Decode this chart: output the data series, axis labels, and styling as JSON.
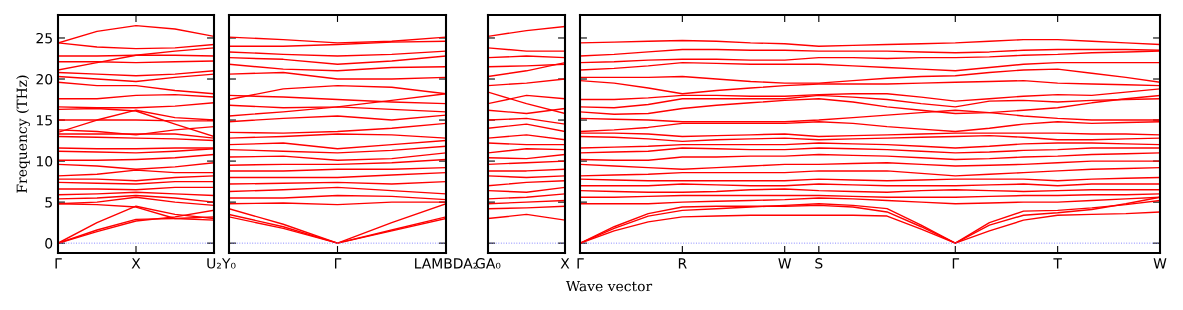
{
  "chart_data": [
    {
      "type": "line",
      "ylabel": "Frequency (THz)",
      "categories": [
        "Γ",
        null,
        "X",
        null,
        "U₂"
      ],
      "ylim": [
        -1.2,
        27.8
      ],
      "yticks": [
        0,
        5,
        10,
        15,
        20,
        25
      ],
      "ref_lines": [
        {
          "axis": "y",
          "value": 0,
          "color": "#8080ff",
          "line_style": "dotted"
        }
      ],
      "series": [
        {
          "color": "#ff0000",
          "values": [
            0,
            2.5,
            4.5,
            3.5,
            3
          ]
        },
        {
          "color": "#ff0000",
          "values": [
            0,
            1.6,
            2.9,
            3.0,
            3.2
          ]
        },
        {
          "color": "#ff0000",
          "values": [
            0,
            1.4,
            2.7,
            3.2,
            4.0
          ]
        },
        {
          "color": "#ff0000",
          "values": [
            4.8,
            4.7,
            4.4,
            3.0,
            2.8
          ]
        },
        {
          "color": "#ff0000",
          "values": [
            4.8,
            5.0,
            5.6,
            5.0,
            4.6
          ]
        },
        {
          "color": "#ff0000",
          "values": [
            5.4,
            5.5,
            5.8,
            5.5,
            5.0
          ]
        },
        {
          "color": "#ff0000",
          "values": [
            5.9,
            6.0,
            6.2,
            6.0,
            5.8
          ]
        },
        {
          "color": "#ff0000",
          "values": [
            6.6,
            6.6,
            6.5,
            6.8,
            6.8
          ]
        },
        {
          "color": "#ff0000",
          "values": [
            7.4,
            7.3,
            7.2,
            7.5,
            7.5
          ]
        },
        {
          "color": "#ff0000",
          "values": [
            7.8,
            7.8,
            7.6,
            8.0,
            8.2
          ]
        },
        {
          "color": "#ff0000",
          "values": [
            8.2,
            8.4,
            8.9,
            8.6,
            8.6
          ]
        },
        {
          "color": "#ff0000",
          "values": [
            9.6,
            9.4,
            9.0,
            9.3,
            9.8
          ]
        },
        {
          "color": "#ff0000",
          "values": [
            10.1,
            10.1,
            10.2,
            10.4,
            10.8
          ]
        },
        {
          "color": "#ff0000",
          "values": [
            11.2,
            11.1,
            11.0,
            11.2,
            11.5
          ]
        },
        {
          "color": "#ff0000",
          "values": [
            11.6,
            11.5,
            11.5,
            11.6,
            11.6
          ]
        },
        {
          "color": "#ff0000",
          "values": [
            13.0,
            12.9,
            12.8,
            12.7,
            12.5
          ]
        },
        {
          "color": "#ff0000",
          "values": [
            13.3,
            13.3,
            13.3,
            13.3,
            12.8
          ]
        },
        {
          "color": "#ff0000",
          "values": [
            13.8,
            13.6,
            13.2,
            13.8,
            14.2
          ]
        },
        {
          "color": "#ff0000",
          "values": [
            13.5,
            15.0,
            16.2,
            15.3,
            15.0
          ]
        },
        {
          "color": "#ff0000",
          "values": [
            15.0,
            15.0,
            15.0,
            14.9,
            14.9
          ]
        },
        {
          "color": "#ff0000",
          "values": [
            16.3,
            16.4,
            16.1,
            14.5,
            13.0
          ]
        },
        {
          "color": "#ff0000",
          "values": [
            16.6,
            16.5,
            16.5,
            16.7,
            17.1
          ]
        },
        {
          "color": "#ff0000",
          "values": [
            17.6,
            17.6,
            18.0,
            18.1,
            17.8
          ]
        },
        {
          "color": "#ff0000",
          "values": [
            19.6,
            19.2,
            19.2,
            18.6,
            18.2
          ]
        },
        {
          "color": "#ff0000",
          "values": [
            20.3,
            20.0,
            19.7,
            20.2,
            20.6
          ]
        },
        {
          "color": "#ff0000",
          "values": [
            20.8,
            20.6,
            20.4,
            20.6,
            21.0
          ]
        },
        {
          "color": "#ff0000",
          "values": [
            21.1,
            22.0,
            22.9,
            23.4,
            23.8
          ]
        },
        {
          "color": "#ff0000",
          "values": [
            22.1,
            22.1,
            22.0,
            22.1,
            22.2
          ]
        },
        {
          "color": "#ff0000",
          "values": [
            22.8,
            22.8,
            22.9,
            22.9,
            22.8
          ]
        },
        {
          "color": "#ff0000",
          "values": [
            24.4,
            23.9,
            23.7,
            23.8,
            24.2
          ]
        },
        {
          "color": "#ff0000",
          "values": [
            24.4,
            25.8,
            26.5,
            26.1,
            25.2
          ]
        }
      ]
    },
    {
      "type": "line",
      "tick_labels": "x",
      "categories": [
        "Y₀",
        null,
        "Γ",
        null,
        "LAMBDA₂"
      ],
      "ylim": [
        -1.2,
        27.8
      ],
      "yticks": [
        0,
        5,
        10,
        15,
        20,
        25
      ],
      "ref_lines": [
        {
          "axis": "y",
          "value": 0,
          "color": "#8080ff",
          "line_style": "dotted"
        }
      ],
      "series": [
        {
          "color": "#ff0000",
          "values": [
            3.2,
            1.8,
            0,
            2.5,
            4.8
          ]
        },
        {
          "color": "#ff0000",
          "values": [
            3.5,
            2.0,
            0,
            1.6,
            3.2
          ]
        },
        {
          "color": "#ff0000",
          "values": [
            4.2,
            2.3,
            0,
            1.5,
            3.0
          ]
        },
        {
          "color": "#ff0000",
          "values": [
            4.8,
            4.9,
            4.7,
            5.0,
            5.0
          ]
        },
        {
          "color": "#ff0000",
          "values": [
            5.5,
            5.5,
            5.8,
            5.7,
            5.3
          ]
        },
        {
          "color": "#ff0000",
          "values": [
            6.3,
            6.5,
            6.8,
            6.4,
            6.0
          ]
        },
        {
          "color": "#ff0000",
          "values": [
            7.2,
            7.3,
            7.4,
            7.2,
            7.5
          ]
        },
        {
          "color": "#ff0000",
          "values": [
            8.0,
            8.0,
            8.0,
            8.3,
            8.6
          ]
        },
        {
          "color": "#ff0000",
          "values": [
            8.8,
            8.8,
            9.0,
            9.0,
            9.2
          ]
        },
        {
          "color": "#ff0000",
          "values": [
            9.5,
            9.6,
            9.6,
            9.8,
            10.2
          ]
        },
        {
          "color": "#ff0000",
          "values": [
            10.5,
            10.6,
            10.1,
            10.3,
            11.0
          ]
        },
        {
          "color": "#ff0000",
          "values": [
            11.4,
            11.2,
            11.0,
            11.3,
            11.8
          ]
        },
        {
          "color": "#ff0000",
          "values": [
            12.0,
            12.2,
            11.5,
            12.0,
            12.5
          ]
        },
        {
          "color": "#ff0000",
          "values": [
            12.8,
            13.0,
            13.3,
            13.2,
            12.8
          ]
        },
        {
          "color": "#ff0000",
          "values": [
            13.5,
            13.4,
            13.6,
            14.0,
            14.6
          ]
        },
        {
          "color": "#ff0000",
          "values": [
            14.8,
            15.2,
            15.5,
            15.0,
            15.6
          ]
        },
        {
          "color": "#ff0000",
          "values": [
            15.5,
            16.0,
            16.6,
            16.3,
            16.0
          ]
        },
        {
          "color": "#ff0000",
          "values": [
            16.8,
            16.5,
            16.6,
            17.4,
            18.2
          ]
        },
        {
          "color": "#ff0000",
          "values": [
            17.5,
            18.8,
            19.2,
            19.0,
            18.2
          ]
        },
        {
          "color": "#ff0000",
          "values": [
            18.0,
            17.8,
            17.5,
            17.2,
            17.0
          ]
        },
        {
          "color": "#ff0000",
          "values": [
            20.6,
            20.8,
            20.0,
            20.0,
            20.2
          ]
        },
        {
          "color": "#ff0000",
          "values": [
            21.8,
            21.2,
            21.0,
            21.4,
            21.5
          ]
        },
        {
          "color": "#ff0000",
          "values": [
            22.6,
            22.4,
            21.8,
            22.2,
            22.8
          ]
        },
        {
          "color": "#ff0000",
          "values": [
            23.3,
            23.0,
            22.8,
            23.0,
            23.4
          ]
        },
        {
          "color": "#ff0000",
          "values": [
            24.0,
            24.0,
            24.2,
            24.5,
            24.6
          ]
        },
        {
          "color": "#ff0000",
          "values": [
            25.1,
            24.8,
            24.4,
            24.6,
            25.1
          ]
        }
      ]
    },
    {
      "type": "line",
      "tick_labels": "x",
      "categories": [
        "GA₀",
        null,
        "X"
      ],
      "ylim": [
        -1.2,
        27.8
      ],
      "yticks": [
        0,
        5,
        10,
        15,
        20,
        25
      ],
      "ref_lines": [
        {
          "axis": "y",
          "value": 0,
          "color": "#8080ff",
          "line_style": "dotted"
        }
      ],
      "series": [
        {
          "color": "#ff0000",
          "values": [
            3.0,
            3.5,
            2.8
          ]
        },
        {
          "color": "#ff0000",
          "values": [
            4.2,
            4.3,
            4.5
          ]
        },
        {
          "color": "#ff0000",
          "values": [
            4.8,
            5.0,
            5.2
          ]
        },
        {
          "color": "#ff0000",
          "values": [
            5.4,
            5.6,
            6.0
          ]
        },
        {
          "color": "#ff0000",
          "values": [
            6.4,
            6.2,
            6.8
          ]
        },
        {
          "color": "#ff0000",
          "values": [
            7.0,
            7.4,
            7.6
          ]
        },
        {
          "color": "#ff0000",
          "values": [
            8.2,
            8.0,
            8.2
          ]
        },
        {
          "color": "#ff0000",
          "values": [
            8.8,
            8.8,
            9.0
          ]
        },
        {
          "color": "#ff0000",
          "values": [
            9.6,
            9.8,
            10.0
          ]
        },
        {
          "color": "#ff0000",
          "values": [
            10.4,
            10.3,
            10.8
          ]
        },
        {
          "color": "#ff0000",
          "values": [
            11.0,
            11.5,
            11.4
          ]
        },
        {
          "color": "#ff0000",
          "values": [
            12.2,
            12.0,
            12.0
          ]
        },
        {
          "color": "#ff0000",
          "values": [
            12.8,
            13.2,
            12.6
          ]
        },
        {
          "color": "#ff0000",
          "values": [
            14.0,
            14.5,
            13.6
          ]
        },
        {
          "color": "#ff0000",
          "values": [
            15.0,
            15.2,
            14.5
          ]
        },
        {
          "color": "#ff0000",
          "values": [
            16.2,
            15.8,
            16.4
          ]
        },
        {
          "color": "#ff0000",
          "values": [
            17.0,
            18.0,
            17.6
          ]
        },
        {
          "color": "#ff0000",
          "values": [
            18.4,
            17.0,
            15.8
          ]
        },
        {
          "color": "#ff0000",
          "values": [
            19.2,
            19.5,
            20.0
          ]
        },
        {
          "color": "#ff0000",
          "values": [
            20.3,
            21.0,
            22.0
          ]
        },
        {
          "color": "#ff0000",
          "values": [
            21.5,
            21.6,
            21.8
          ]
        },
        {
          "color": "#ff0000",
          "values": [
            22.6,
            22.8,
            22.6
          ]
        },
        {
          "color": "#ff0000",
          "values": [
            23.8,
            23.4,
            23.4
          ]
        },
        {
          "color": "#ff0000",
          "values": [
            25.2,
            25.9,
            26.4
          ]
        }
      ]
    },
    {
      "type": "line",
      "tick_labels": "x",
      "xlabel": "Wave vector",
      "categories": [
        "Γ",
        null,
        null,
        "R",
        null,
        null,
        "W",
        "S",
        null,
        null,
        null,
        "Γ",
        null,
        null,
        "T",
        null,
        null,
        "W"
      ],
      "ylim": [
        -1.2,
        27.8
      ],
      "yticks": [
        0,
        5,
        10,
        15,
        20,
        25
      ],
      "ref_lines": [
        {
          "axis": "y",
          "value": 0,
          "color": "#8080ff",
          "line_style": "dotted"
        }
      ],
      "series": [
        {
          "color": "#ff0000",
          "values": [
            0,
            1.5,
            2.6,
            3.2,
            3.3,
            3.4,
            3.4,
            3.4,
            3.4,
            3.3,
            1.7,
            0,
            1.5,
            2.8,
            3.4,
            3.5,
            3.6,
            3.8
          ]
        },
        {
          "color": "#ff0000",
          "values": [
            0,
            2.0,
            3.6,
            4.4,
            4.5,
            4.5,
            4.5,
            4.6,
            4.4,
            3.8,
            2.0,
            0,
            2.5,
            3.9,
            4.0,
            4.3,
            4.7,
            5.2
          ]
        },
        {
          "color": "#ff0000",
          "values": [
            0,
            1.8,
            3.3,
            4.0,
            4.2,
            4.4,
            4.6,
            4.8,
            4.6,
            4.2,
            2.2,
            0,
            2.2,
            3.4,
            3.7,
            4.1,
            4.8,
            5.6
          ]
        },
        {
          "color": "#ff0000",
          "values": [
            4.8,
            4.8,
            4.8,
            5.0,
            5.1,
            5.2,
            5.3,
            5.5,
            5.4,
            5.2,
            5.0,
            4.8,
            4.9,
            5.0,
            5.0,
            5.2,
            5.4,
            5.6
          ]
        },
        {
          "color": "#ff0000",
          "values": [
            5.6,
            5.6,
            5.7,
            5.8,
            5.8,
            5.8,
            5.8,
            5.8,
            5.7,
            5.6,
            5.6,
            5.6,
            5.7,
            5.8,
            5.8,
            5.9,
            5.9,
            6.0
          ]
        },
        {
          "color": "#ff0000",
          "values": [
            6.4,
            6.3,
            6.2,
            6.2,
            6.3,
            6.5,
            6.6,
            6.4,
            6.3,
            6.2,
            6.4,
            6.5,
            6.4,
            6.3,
            6.4,
            6.5,
            6.5,
            6.5
          ]
        },
        {
          "color": "#ff0000",
          "values": [
            7.0,
            7.0,
            7.0,
            7.2,
            7.1,
            7.0,
            7.0,
            7.2,
            7.1,
            7.0,
            7.0,
            7.0,
            7.1,
            7.2,
            7.0,
            7.2,
            7.2,
            7.2
          ]
        },
        {
          "color": "#ff0000",
          "values": [
            7.8,
            7.7,
            7.6,
            7.6,
            7.6,
            7.6,
            7.6,
            7.8,
            7.7,
            7.6,
            7.7,
            7.8,
            7.8,
            7.8,
            7.6,
            7.8,
            7.9,
            8.0
          ]
        },
        {
          "color": "#ff0000",
          "values": [
            8.2,
            8.3,
            8.4,
            8.6,
            8.6,
            8.6,
            8.6,
            8.8,
            8.8,
            8.8,
            8.5,
            8.2,
            8.4,
            8.6,
            8.8,
            9.0,
            9.1,
            9.2
          ]
        },
        {
          "color": "#ff0000",
          "values": [
            9.6,
            9.4,
            9.2,
            9.0,
            9.2,
            9.4,
            9.6,
            9.6,
            9.7,
            9.8,
            9.6,
            9.4,
            9.5,
            9.6,
            9.8,
            10.0,
            10.0,
            10.0
          ]
        },
        {
          "color": "#ff0000",
          "values": [
            10.2,
            10.1,
            10.1,
            10.5,
            10.5,
            10.6,
            10.6,
            10.8,
            10.7,
            10.6,
            10.4,
            10.2,
            10.3,
            10.5,
            10.6,
            10.8,
            10.9,
            11.0
          ]
        },
        {
          "color": "#ff0000",
          "values": [
            11.0,
            11.1,
            11.2,
            11.6,
            11.5,
            11.4,
            11.4,
            11.6,
            11.5,
            11.4,
            11.2,
            11.0,
            11.1,
            11.3,
            11.4,
            11.6,
            11.6,
            11.6
          ]
        },
        {
          "color": "#ff0000",
          "values": [
            11.6,
            11.7,
            11.8,
            12.0,
            12.0,
            12.0,
            12.0,
            12.2,
            12.1,
            12.0,
            11.8,
            11.6,
            11.8,
            12.1,
            12.2,
            12.2,
            12.1,
            12.0
          ]
        },
        {
          "color": "#ff0000",
          "values": [
            13.0,
            12.9,
            12.7,
            12.4,
            12.6,
            12.7,
            12.8,
            12.6,
            12.7,
            12.8,
            12.9,
            13.0,
            13.1,
            12.9,
            12.6,
            12.6,
            12.7,
            12.8
          ]
        },
        {
          "color": "#ff0000",
          "values": [
            13.4,
            13.4,
            13.3,
            13.0,
            13.1,
            13.2,
            13.3,
            13.0,
            13.1,
            13.2,
            13.3,
            13.4,
            13.4,
            13.4,
            13.4,
            13.3,
            13.3,
            13.2
          ]
        },
        {
          "color": "#ff0000",
          "values": [
            13.6,
            13.8,
            14.1,
            14.6,
            14.6,
            14.6,
            14.6,
            14.8,
            14.6,
            14.2,
            13.9,
            13.6,
            14.0,
            14.5,
            14.8,
            14.6,
            14.7,
            14.8
          ]
        },
        {
          "color": "#ff0000",
          "values": [
            15.2,
            15.1,
            15.0,
            14.8,
            14.8,
            14.8,
            14.8,
            15.0,
            15.3,
            15.6,
            15.9,
            16.2,
            15.9,
            15.5,
            15.2,
            15.0,
            15.0,
            15.0
          ]
        },
        {
          "color": "#ff0000",
          "values": [
            16.0,
            15.7,
            15.8,
            16.4,
            16.8,
            17.1,
            17.4,
            17.6,
            17.2,
            16.6,
            16.2,
            15.8,
            15.9,
            16.2,
            16.5,
            17.1,
            17.6,
            18.0
          ]
        },
        {
          "color": "#ff0000",
          "values": [
            16.6,
            16.5,
            16.9,
            17.6,
            17.6,
            17.6,
            17.6,
            18.0,
            17.8,
            17.5,
            17.0,
            16.6,
            17.3,
            17.4,
            17.2,
            17.4,
            17.5,
            17.6
          ]
        },
        {
          "color": "#ff0000",
          "values": [
            17.5,
            17.5,
            17.7,
            18.0,
            18.0,
            17.9,
            17.9,
            18.1,
            18.2,
            18.2,
            17.8,
            17.3,
            17.6,
            17.9,
            18.1,
            18.0,
            18.4,
            18.8
          ]
        },
        {
          "color": "#ff0000",
          "values": [
            19.8,
            19.5,
            18.9,
            18.2,
            18.6,
            18.9,
            19.2,
            19.4,
            19.4,
            19.4,
            19.5,
            19.6,
            19.7,
            19.8,
            19.5,
            19.4,
            19.3,
            19.2
          ]
        },
        {
          "color": "#ff0000",
          "values": [
            20.2,
            20.2,
            20.2,
            20.3,
            20.0,
            19.7,
            19.5,
            19.5,
            19.8,
            20.1,
            20.3,
            20.4,
            20.8,
            21.1,
            21.2,
            20.7,
            20.2,
            19.6
          ]
        },
        {
          "color": "#ff0000",
          "values": [
            21.1,
            21.3,
            21.6,
            22.0,
            21.9,
            21.8,
            21.8,
            21.8,
            21.6,
            21.4,
            21.2,
            21.0,
            21.4,
            21.8,
            22.0,
            22.0,
            22.0,
            22.0
          ]
        },
        {
          "color": "#ff0000",
          "values": [
            22.0,
            22.1,
            22.3,
            22.4,
            22.4,
            22.3,
            22.3,
            22.6,
            22.6,
            22.5,
            22.6,
            22.6,
            22.7,
            22.9,
            23.0,
            23.2,
            23.3,
            23.4
          ]
        },
        {
          "color": "#ff0000",
          "values": [
            22.8,
            23.0,
            23.3,
            23.6,
            23.6,
            23.5,
            23.5,
            23.4,
            23.4,
            23.4,
            23.3,
            23.2,
            23.3,
            23.5,
            23.6,
            23.6,
            23.6,
            23.5
          ]
        },
        {
          "color": "#ff0000",
          "values": [
            24.4,
            24.5,
            24.6,
            24.7,
            24.6,
            24.4,
            24.3,
            24.0,
            24.1,
            24.2,
            24.3,
            24.4,
            24.6,
            24.8,
            24.8,
            24.6,
            24.4,
            24.2
          ]
        }
      ]
    }
  ]
}
